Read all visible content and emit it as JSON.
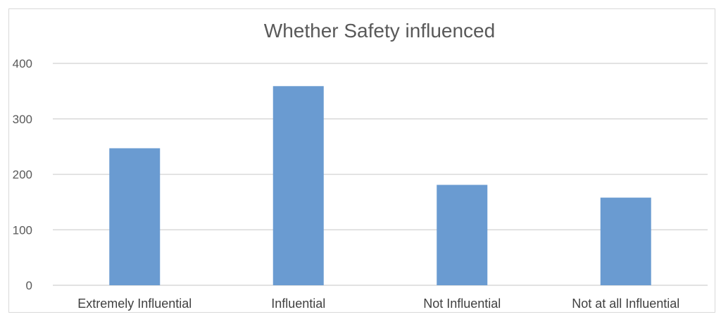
{
  "chart_data": {
    "type": "bar",
    "title": "Whether Safety influenced",
    "categories": [
      "Extremely Influential",
      "Influential",
      "Not Influential",
      "Not at all Influential"
    ],
    "values": [
      247,
      359,
      181,
      158
    ],
    "ylim": [
      0,
      400
    ],
    "yticks": [
      0,
      100,
      200,
      300,
      400
    ],
    "grid": true,
    "legend": "none",
    "bar_color": "#6a9bd1",
    "gridline_color": "#d9d9d9",
    "xlabel": "",
    "ylabel": ""
  }
}
